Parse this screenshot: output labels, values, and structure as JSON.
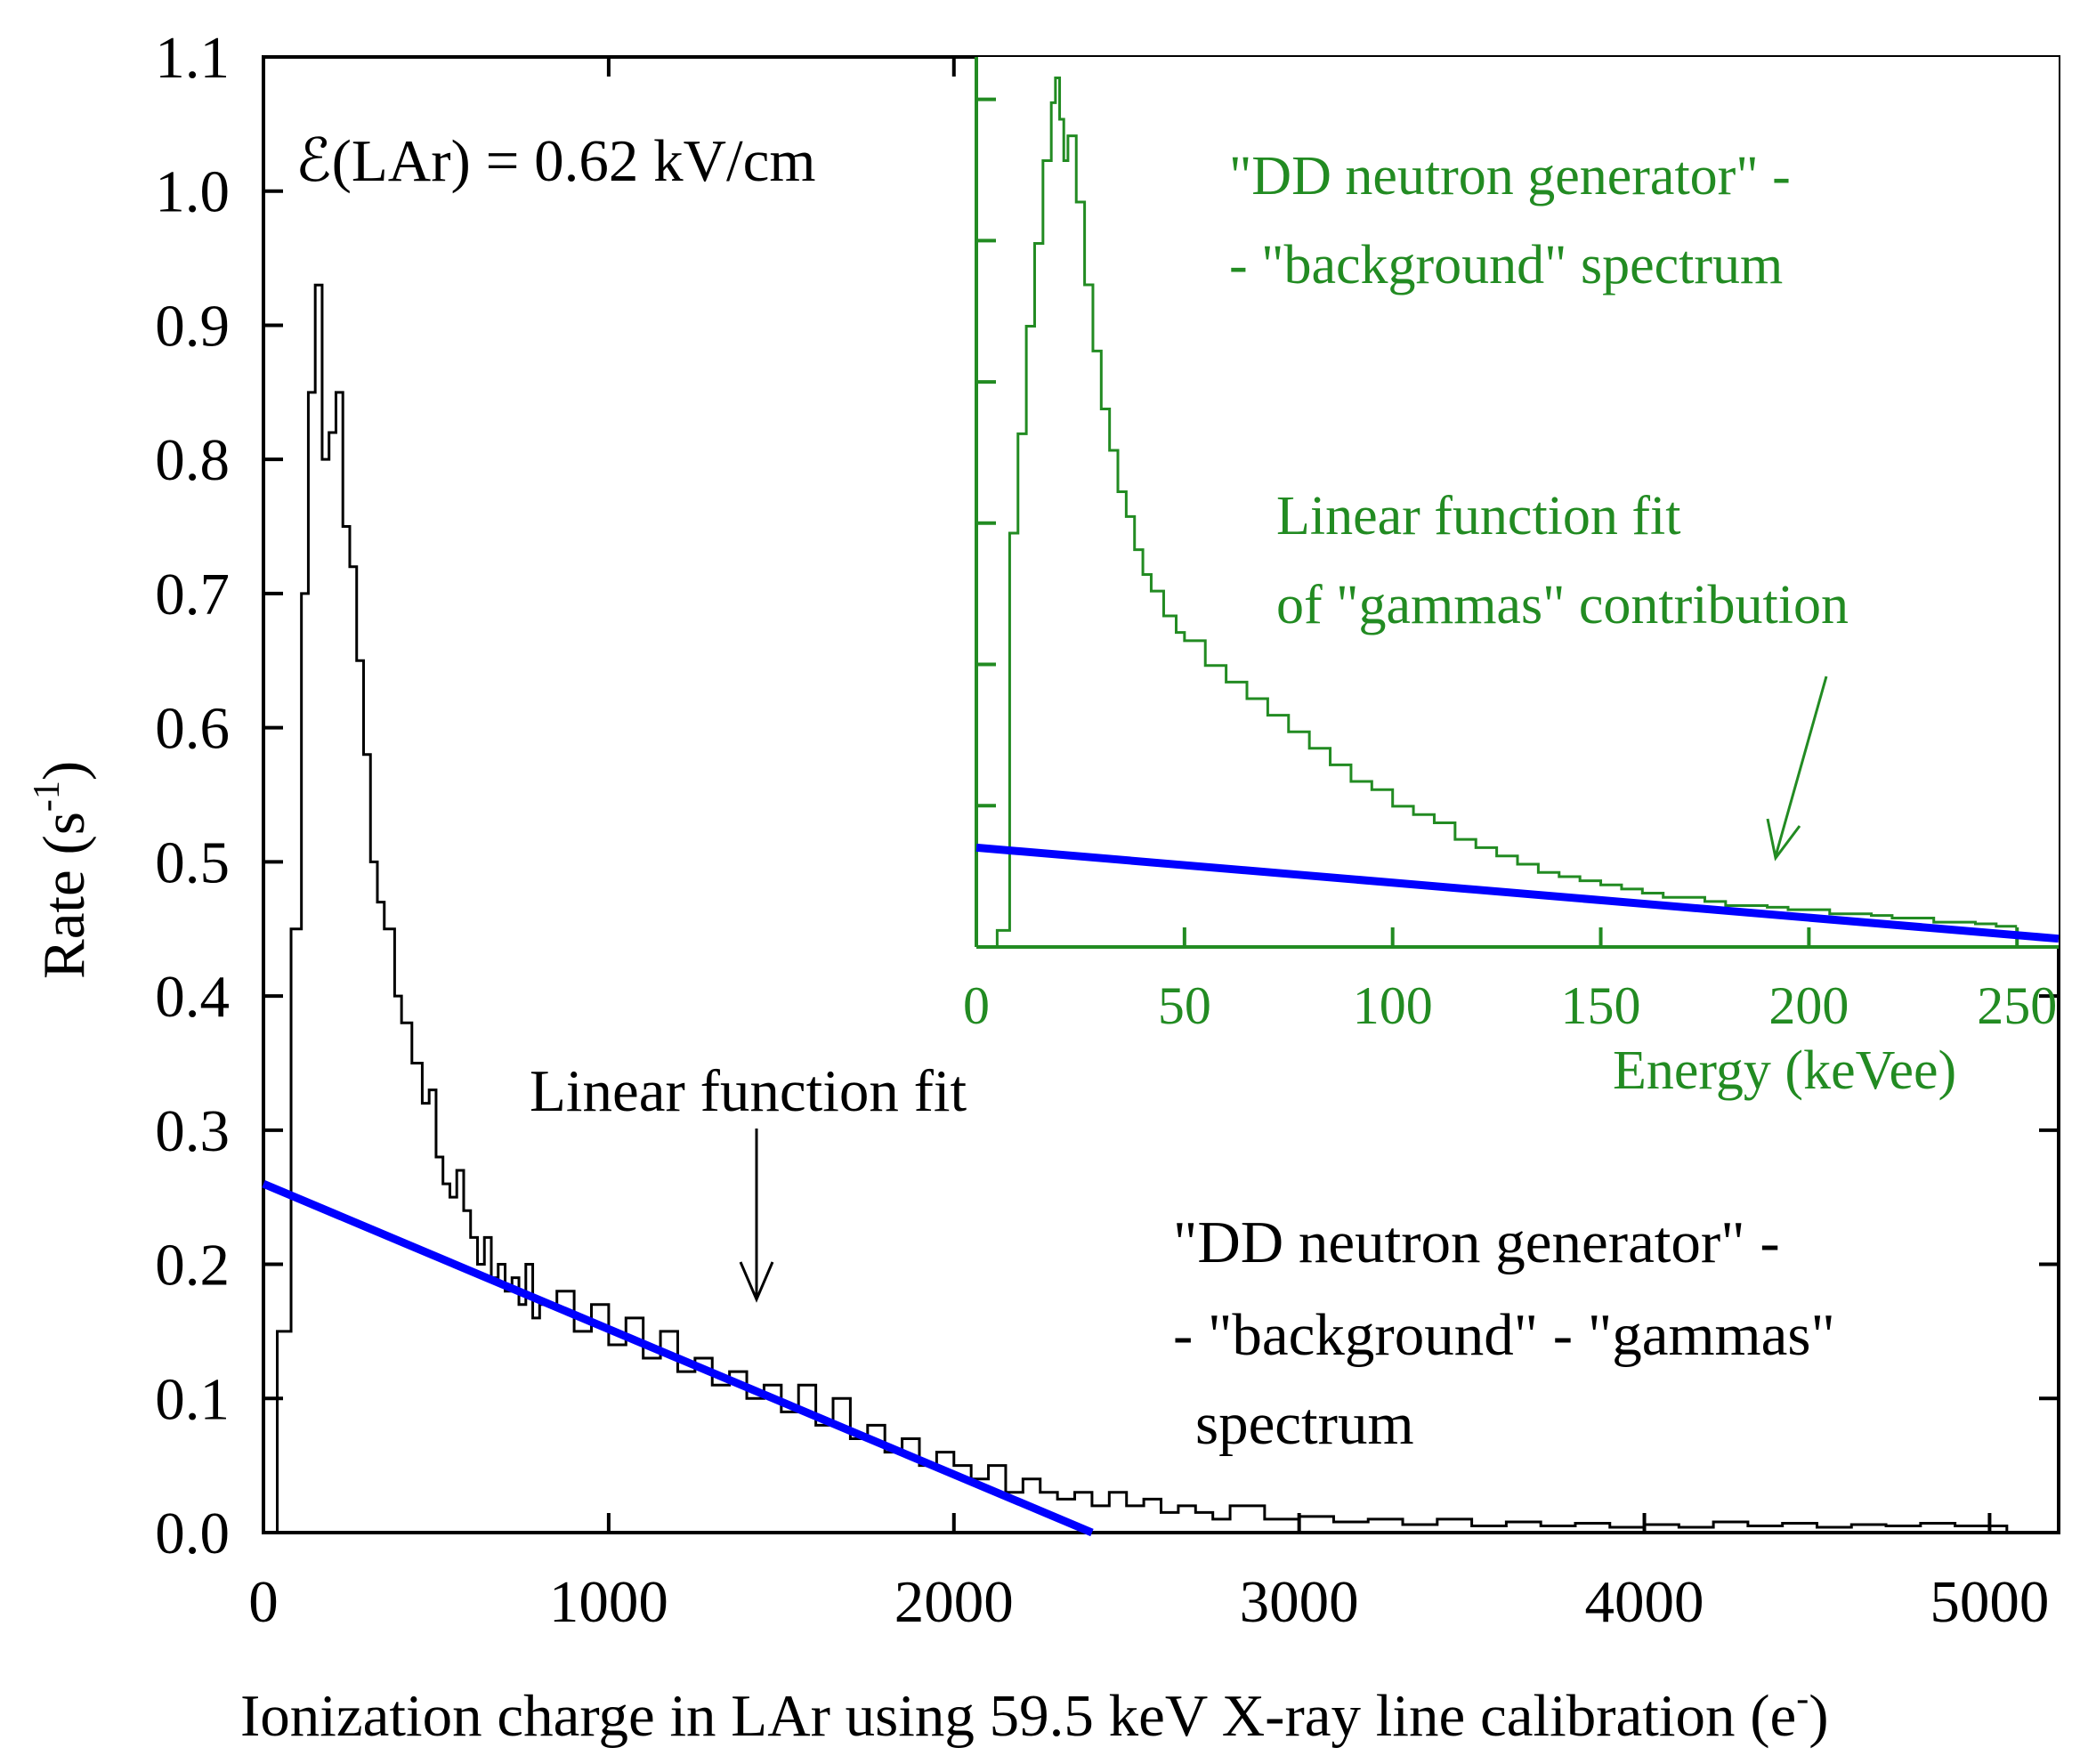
{
  "chart_data": [
    {
      "panel": "main",
      "type": "line",
      "xlabel": "Ionization charge in LAr using 59.5 keV X-ray line calibration (e",
      "xlabel_superscript": "-",
      "xlabel_close": ")",
      "ylabel": "Rate (s",
      "ylabel_superscript": "-1",
      "ylabel_close": ")",
      "xlim": [
        0,
        5200
      ],
      "ylim": [
        0,
        1.1
      ],
      "x_ticks": [
        0,
        1000,
        2000,
        3000,
        4000,
        5000
      ],
      "x_tick_labels": [
        "0",
        "1000",
        "2000",
        "3000",
        "4000",
        "5000"
      ],
      "y_ticks": [
        0,
        0.1,
        0.2,
        0.3,
        0.4,
        0.5,
        0.6,
        0.7,
        0.8,
        0.9,
        1.0,
        1.1
      ],
      "y_tick_labels": [
        "0.0",
        "0.1",
        "0.2",
        "0.3",
        "0.4",
        "0.5",
        "0.6",
        "0.7",
        "0.8",
        "0.9",
        "1.0",
        "1.1"
      ],
      "grid": false,
      "series": [
        {
          "name": "\"DD neutron generator\" - \"background\" - \"gammas\" spectrum",
          "color": "#000000",
          "style": "step",
          "x": [
            0,
            40,
            80,
            110,
            130,
            150,
            170,
            190,
            210,
            230,
            250,
            270,
            290,
            310,
            330,
            350,
            380,
            400,
            430,
            460,
            480,
            500,
            520,
            540,
            560,
            580,
            600,
            620,
            640,
            660,
            680,
            700,
            720,
            740,
            760,
            780,
            800,
            850,
            900,
            950,
            1000,
            1050,
            1100,
            1150,
            1200,
            1250,
            1300,
            1350,
            1400,
            1450,
            1500,
            1550,
            1600,
            1650,
            1700,
            1750,
            1800,
            1850,
            1900,
            1950,
            2000,
            2050,
            2100,
            2150,
            2200,
            2250,
            2300,
            2350,
            2400,
            2450,
            2500,
            2550,
            2600,
            2650,
            2700,
            2750,
            2800,
            2900,
            3000,
            3100,
            3200,
            3300,
            3400,
            3500,
            3600,
            3700,
            3800,
            3900,
            4000,
            4100,
            4200,
            4300,
            4400,
            4500,
            4600,
            4700,
            4800,
            4900,
            5050
          ],
          "values": [
            0.0,
            0.15,
            0.45,
            0.7,
            0.85,
            0.93,
            0.8,
            0.82,
            0.85,
            0.75,
            0.72,
            0.65,
            0.58,
            0.5,
            0.47,
            0.45,
            0.4,
            0.38,
            0.35,
            0.32,
            0.33,
            0.28,
            0.26,
            0.25,
            0.27,
            0.24,
            0.22,
            0.2,
            0.22,
            0.19,
            0.2,
            0.18,
            0.19,
            0.17,
            0.2,
            0.16,
            0.17,
            0.18,
            0.15,
            0.17,
            0.14,
            0.16,
            0.13,
            0.15,
            0.12,
            0.13,
            0.11,
            0.12,
            0.1,
            0.11,
            0.09,
            0.11,
            0.08,
            0.1,
            0.07,
            0.08,
            0.06,
            0.07,
            0.05,
            0.06,
            0.05,
            0.04,
            0.05,
            0.03,
            0.04,
            0.03,
            0.025,
            0.03,
            0.02,
            0.03,
            0.02,
            0.025,
            0.015,
            0.02,
            0.015,
            0.01,
            0.02,
            0.01,
            0.012,
            0.008,
            0.01,
            0.006,
            0.01,
            0.005,
            0.008,
            0.005,
            0.007,
            0.004,
            0.006,
            0.004,
            0.008,
            0.005,
            0.007,
            0.004,
            0.006,
            0.005,
            0.007,
            0.005,
            0.0
          ]
        },
        {
          "name": "Linear function fit",
          "color": "#0000ff",
          "style": "line",
          "x": [
            0,
            2400
          ],
          "values": [
            0.26,
            0.0
          ]
        }
      ],
      "annotations": [
        {
          "text": "ℰ(LAr) = 0.62 kV/cm"
        },
        {
          "text": "Linear function fit"
        },
        {
          "text_lines": [
            "\"DD neutron generator\" -",
            "- \"background\" - \"gammas\"",
            "spectrum"
          ]
        }
      ]
    },
    {
      "panel": "inset",
      "type": "line",
      "xlabel": "Energy (keVee)",
      "xlim": [
        0,
        260
      ],
      "x_ticks": [
        0,
        50,
        100,
        150,
        200,
        250
      ],
      "x_tick_labels": [
        "0",
        "50",
        "100",
        "150",
        "200",
        "250"
      ],
      "y_ticks_unlabeled": 6,
      "grid": false,
      "color": "#228b22",
      "series": [
        {
          "name": "\"DD neutron generator\" - \"background\" spectrum",
          "color": "#228b22",
          "style": "step",
          "x": [
            0,
            5,
            8,
            10,
            12,
            14,
            16,
            18,
            19,
            20,
            21,
            22,
            24,
            26,
            28,
            30,
            32,
            34,
            36,
            38,
            40,
            42,
            45,
            48,
            50,
            55,
            60,
            65,
            70,
            75,
            80,
            85,
            90,
            95,
            100,
            105,
            110,
            115,
            120,
            125,
            130,
            135,
            140,
            145,
            150,
            155,
            160,
            165,
            170,
            175,
            180,
            185,
            190,
            195,
            200,
            205,
            210,
            215,
            220,
            225,
            230,
            235,
            240,
            245,
            250
          ],
          "values": [
            0.0,
            0.02,
            0.5,
            0.62,
            0.75,
            0.85,
            0.95,
            1.02,
            1.05,
            1.0,
            0.95,
            0.98,
            0.9,
            0.8,
            0.72,
            0.65,
            0.6,
            0.55,
            0.52,
            0.48,
            0.45,
            0.43,
            0.4,
            0.38,
            0.37,
            0.34,
            0.32,
            0.3,
            0.28,
            0.26,
            0.24,
            0.22,
            0.2,
            0.19,
            0.17,
            0.16,
            0.15,
            0.13,
            0.12,
            0.11,
            0.1,
            0.09,
            0.085,
            0.08,
            0.075,
            0.07,
            0.065,
            0.06,
            0.06,
            0.055,
            0.05,
            0.05,
            0.048,
            0.045,
            0.045,
            0.04,
            0.04,
            0.038,
            0.035,
            0.035,
            0.03,
            0.03,
            0.028,
            0.025,
            0.025
          ]
        },
        {
          "name": "Linear function fit of \"gammas\" contribution",
          "color": "#0000ff",
          "style": "line",
          "x": [
            0,
            260
          ],
          "values": [
            0.12,
            0.01
          ]
        }
      ],
      "annotations": [
        {
          "text_lines": [
            "\"DD neutron generator\" -",
            "- \"background\" spectrum"
          ]
        },
        {
          "text_lines": [
            "Linear function fit",
            "of \"gammas\" contribution"
          ]
        }
      ]
    }
  ]
}
